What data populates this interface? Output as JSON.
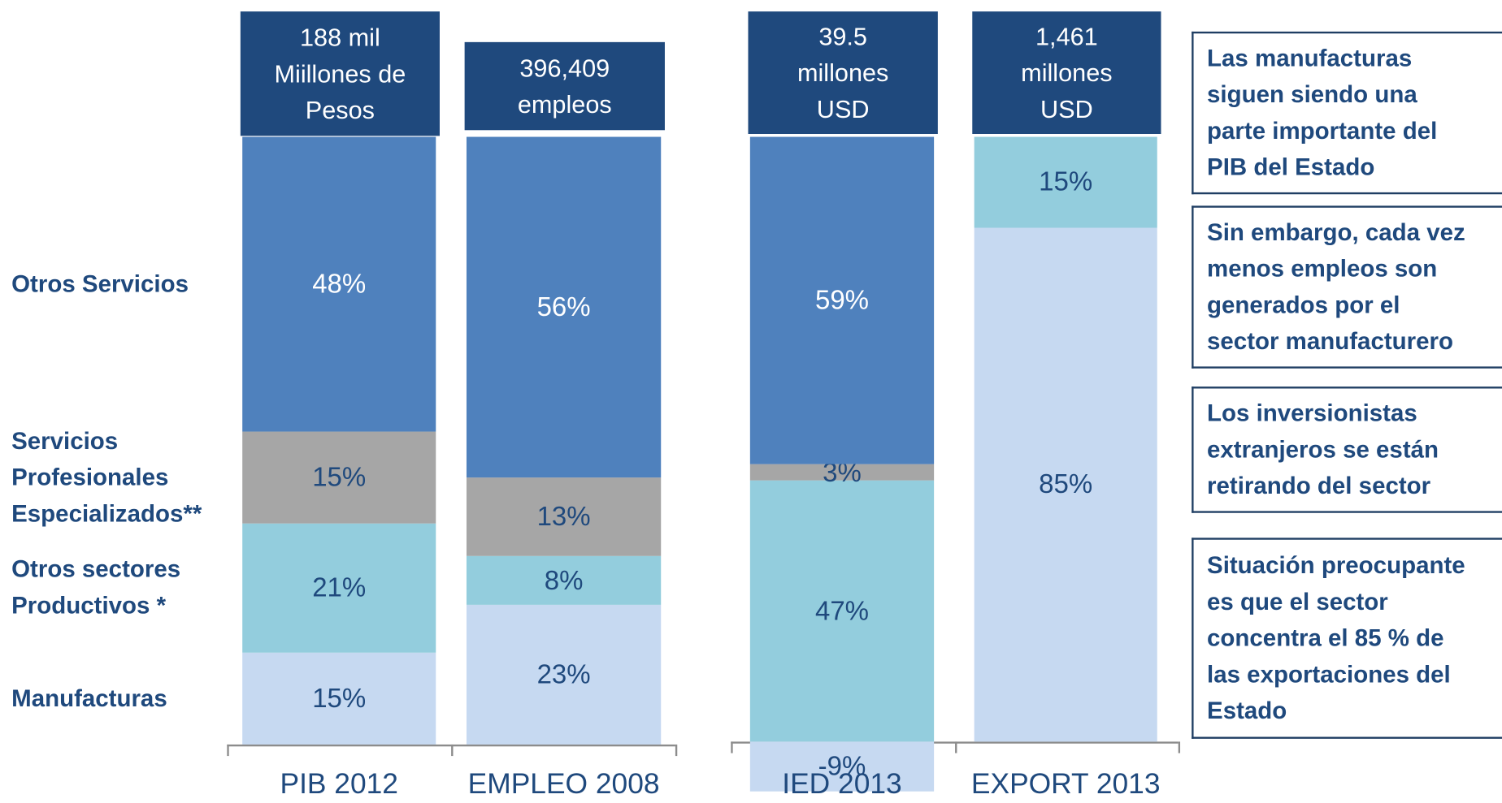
{
  "chart_data": {
    "type": "stacked_bar",
    "categories": [
      "PIB 2012",
      "EMPLEO 2008",
      "IED 2013",
      "EXPORT 2013"
    ],
    "headers": [
      "188 mil\nMiillones de\nPesos",
      "396,409\nempleos",
      "39.5\nmillones\nUSD",
      "1,461\nmillones\nUSD"
    ],
    "series": [
      {
        "name": "Manufacturas",
        "color": "#c6d9f1",
        "values": [
          15,
          23,
          -9,
          85
        ],
        "value_labels": [
          "15%",
          "23%",
          "-9%",
          "85%"
        ]
      },
      {
        "name": "Otros sectores Productivos *",
        "color": "#93cddd",
        "values": [
          21,
          8,
          47,
          15
        ],
        "value_labels": [
          "21%",
          "8%",
          "47%",
          "15%"
        ]
      },
      {
        "name": "Servicios Profesionales Especializados**",
        "color": "#a6a6a6",
        "values": [
          15,
          13,
          3,
          null
        ],
        "value_labels": [
          "15%",
          "13%",
          "3%",
          null
        ]
      },
      {
        "name": "Otros Servicios",
        "color": "#4f81bd",
        "values": [
          48,
          56,
          59,
          null
        ],
        "value_labels": [
          "48%",
          "56%",
          "59%",
          null
        ]
      }
    ],
    "notes": [
      "Las manufacturas\nsiguen siendo una\nparte importante del\nPIB del Estado",
      "Sin embargo, cada vez\nmenos empleos son\ngenerados por el\nsector manufacturero",
      "Los inversionistas\nextranjeros se están\nretirando del sector",
      "Situación preocupante\nes que el sector\nconcentra el 85 % de\nlas exportaciones del\nEstado"
    ]
  }
}
